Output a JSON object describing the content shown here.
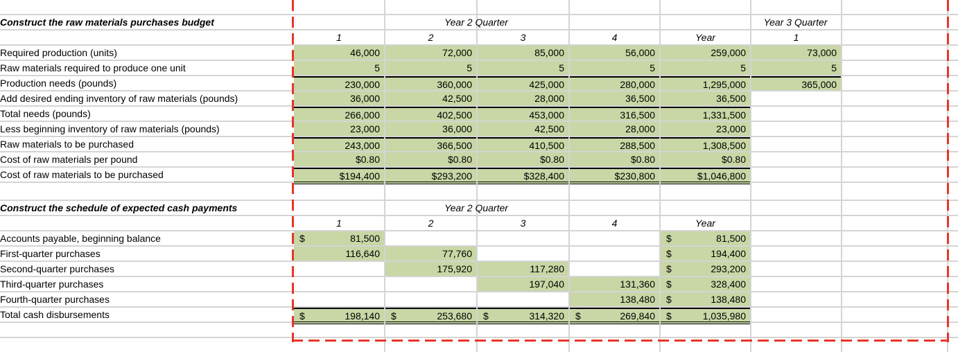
{
  "purchases_budget": {
    "title": "Construct the raw materials purchases budget",
    "group_header": "Year 2 Quarter",
    "group_header_y3": "Year 3 Quarter",
    "columns": [
      "1",
      "2",
      "3",
      "4",
      "Year",
      "1"
    ],
    "rows": [
      {
        "label": "Required production (units)",
        "values": [
          "46,000",
          "72,000",
          "85,000",
          "56,000",
          "259,000",
          "73,000"
        ]
      },
      {
        "label": "Raw materials required to produce one unit",
        "values": [
          "5",
          "5",
          "5",
          "5",
          "5",
          "5"
        ]
      },
      {
        "label": "Production needs (pounds)",
        "values": [
          "230,000",
          "360,000",
          "425,000",
          "280,000",
          "1,295,000",
          "365,000"
        ]
      },
      {
        "label": "Add desired ending inventory of raw materials (pounds)",
        "values": [
          "36,000",
          "42,500",
          "28,000",
          "36,500",
          "36,500"
        ]
      },
      {
        "label": "Total needs (pounds)",
        "values": [
          "266,000",
          "402,500",
          "453,000",
          "316,500",
          "1,331,500"
        ]
      },
      {
        "label": "Less beginning inventory of raw materials (pounds)",
        "values": [
          "23,000",
          "36,000",
          "42,500",
          "28,000",
          "23,000"
        ]
      },
      {
        "label": "Raw materials to be purchased",
        "values": [
          "243,000",
          "366,500",
          "410,500",
          "288,500",
          "1,308,500"
        ]
      },
      {
        "label": "Cost of raw materials per pound",
        "values": [
          "$0.80",
          "$0.80",
          "$0.80",
          "$0.80",
          "$0.80"
        ]
      },
      {
        "label": "Cost of raw materials to be purchased",
        "values": [
          "$194,400",
          "$293,200",
          "$328,400",
          "$230,800",
          "$1,046,800"
        ]
      }
    ]
  },
  "cash_payments": {
    "title": "Construct the schedule of expected cash payments",
    "group_header": "Year 2 Quarter",
    "columns": [
      "1",
      "2",
      "3",
      "4",
      "Year"
    ],
    "currency_symbol": "$",
    "rows": [
      {
        "label": "Accounts payable, beginning balance",
        "values": [
          "81,500",
          "",
          "",
          "",
          "81,500"
        ]
      },
      {
        "label": "First-quarter purchases",
        "values": [
          "116,640",
          "77,760",
          "",
          "",
          "194,400"
        ]
      },
      {
        "label": "Second-quarter purchases",
        "values": [
          "",
          "175,920",
          "117,280",
          "",
          "293,200"
        ]
      },
      {
        "label": "Third-quarter purchases",
        "values": [
          "",
          "",
          "197,040",
          "131,360",
          "328,400"
        ]
      },
      {
        "label": "Fourth-quarter purchases",
        "values": [
          "",
          "",
          "",
          "138,480",
          "138,480"
        ]
      },
      {
        "label": "Total cash disbursements",
        "values": [
          "198,140",
          "253,680",
          "314,320",
          "269,840",
          "1,035,980"
        ]
      }
    ]
  },
  "colors": {
    "input_fill": "#c8d7a5",
    "selection_border": "#e8352a",
    "gridline": "#d4d4d4"
  }
}
